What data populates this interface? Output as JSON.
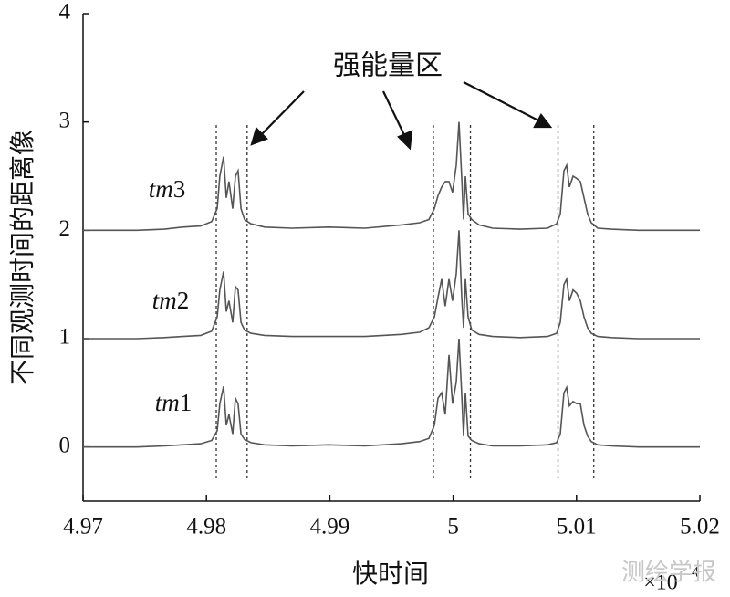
{
  "chart_data": {
    "type": "line",
    "xlabel": "快时间",
    "ylabel": "不同观测时间的距离像",
    "annotation": "强能量区",
    "x_multiplier": "×10",
    "x_multiplier_power": "4",
    "watermark": "测绘学报",
    "xlim": [
      4.97,
      5.02
    ],
    "ylim": [
      -0.5,
      4
    ],
    "xticks": [
      4.97,
      4.98,
      4.99,
      5,
      5.01,
      5.02
    ],
    "yticks": [
      0,
      1,
      2,
      3,
      4
    ],
    "markers": [
      4.9808,
      4.9833,
      4.9984,
      5.0014,
      5.0085,
      5.0114
    ],
    "x": [
      4.97,
      4.97436,
      4.97658,
      4.97806,
      4.97954,
      4.98043,
      4.98087,
      4.98109,
      4.98139,
      4.98161,
      4.98183,
      4.98213,
      4.98235,
      4.98257,
      4.9828,
      4.98309,
      4.98361,
      4.98472,
      4.98694,
      4.9899,
      4.99285,
      4.99581,
      4.99729,
      4.99803,
      4.99848,
      4.99877,
      4.99907,
      4.99936,
      4.99966,
      4.99995,
      5.00025,
      5.00047,
      5.00069,
      5.00084,
      5.00099,
      5.00121,
      5.00151,
      5.0021,
      5.00321,
      5.00543,
      5.00765,
      5.00839,
      5.00868,
      5.00898,
      5.0092,
      5.00942,
      5.00972,
      5.01001,
      5.01031,
      5.01061,
      5.0109,
      5.0112,
      5.01172,
      5.01282,
      5.01504,
      5.02
    ],
    "series": [
      {
        "name": "tm3",
        "color": "#555555",
        "values": [
          2.0,
          2.0,
          2.01,
          2.03,
          2.04,
          2.08,
          2.2,
          2.5,
          2.68,
          2.3,
          2.45,
          2.2,
          2.5,
          2.55,
          2.2,
          2.1,
          2.06,
          2.03,
          2.02,
          2.03,
          2.02,
          2.05,
          2.07,
          2.1,
          2.2,
          2.32,
          2.4,
          2.45,
          2.45,
          2.35,
          2.6,
          3.0,
          2.5,
          2.1,
          2.5,
          2.15,
          2.1,
          2.05,
          2.02,
          2.01,
          2.02,
          2.06,
          2.15,
          2.55,
          2.6,
          2.4,
          2.5,
          2.48,
          2.45,
          2.3,
          2.15,
          2.07,
          2.02,
          2.01,
          2.0,
          2.0
        ]
      },
      {
        "name": "tm2",
        "color": "#555555",
        "values": [
          1.0,
          1.0,
          1.01,
          1.02,
          1.03,
          1.07,
          1.2,
          1.45,
          1.62,
          1.25,
          1.35,
          1.15,
          1.48,
          1.45,
          1.15,
          1.08,
          1.05,
          1.03,
          1.02,
          1.02,
          1.02,
          1.04,
          1.06,
          1.1,
          1.2,
          1.38,
          1.55,
          1.3,
          1.55,
          1.35,
          1.6,
          2.0,
          1.4,
          1.1,
          1.55,
          1.2,
          1.08,
          1.04,
          1.02,
          1.01,
          1.02,
          1.05,
          1.15,
          1.5,
          1.55,
          1.35,
          1.45,
          1.42,
          1.35,
          1.2,
          1.1,
          1.05,
          1.02,
          1.01,
          1.0,
          1.0
        ]
      },
      {
        "name": "tm1",
        "color": "#555555",
        "values": [
          0.0,
          0.0,
          0.01,
          0.02,
          0.03,
          0.06,
          0.15,
          0.4,
          0.56,
          0.2,
          0.3,
          0.12,
          0.45,
          0.4,
          0.12,
          0.07,
          0.04,
          0.02,
          0.01,
          0.02,
          0.01,
          0.03,
          0.05,
          0.08,
          0.2,
          0.45,
          0.5,
          0.3,
          0.85,
          0.4,
          0.6,
          1.0,
          0.5,
          0.1,
          0.5,
          0.1,
          0.06,
          0.03,
          0.01,
          0.01,
          0.02,
          0.04,
          0.12,
          0.5,
          0.55,
          0.38,
          0.42,
          0.4,
          0.4,
          0.2,
          0.1,
          0.05,
          0.02,
          0.01,
          0.0,
          0.0
        ]
      }
    ]
  }
}
